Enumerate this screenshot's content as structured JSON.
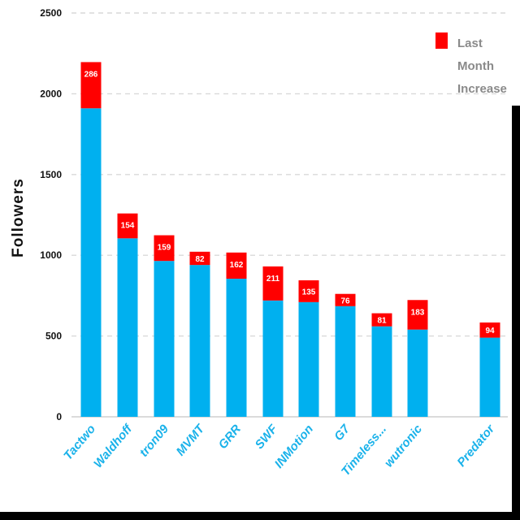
{
  "chart_data": {
    "type": "bar",
    "stacked": true,
    "categories": [
      "Tactwo",
      "Waldhoff",
      "tron09",
      "MVMT",
      "GRR",
      "SWF",
      "INMotion",
      "G7",
      "Timeless...",
      "wutronic",
      "Predator"
    ],
    "base_values": [
      1910,
      1105,
      965,
      940,
      855,
      720,
      710,
      685,
      560,
      540,
      490
    ],
    "series": [
      {
        "name": "",
        "color": "#00b0ef",
        "values": [
          1910,
          1105,
          965,
          940,
          855,
          720,
          710,
          685,
          560,
          540,
          490
        ]
      },
      {
        "name": "Last Month Increase",
        "color": "#ff0000",
        "values": [
          286,
          154,
          159,
          82,
          162,
          211,
          135,
          76,
          81,
          183,
          94
        ]
      }
    ],
    "value_labels": [
      "286",
      "154",
      "159",
      "82",
      "162",
      "211",
      "135",
      "76",
      "81",
      "183",
      "94"
    ],
    "legend_lines": [
      "Last",
      "Month",
      "Increase"
    ],
    "legend_position": "top-right",
    "ylabel": "Followers",
    "xlabel": "",
    "ylim": [
      0,
      2500
    ],
    "yticks": [
      0,
      500,
      1000,
      1500,
      2000,
      2500
    ],
    "ytick_labels": [
      "0",
      "500",
      "1000",
      "1500",
      "2000",
      "2500"
    ],
    "grid": true,
    "colors": {
      "base": "#00b0ef",
      "increase": "#ff0000",
      "grid": "#d9d9d9",
      "category_text": "#1ab2ea"
    }
  }
}
